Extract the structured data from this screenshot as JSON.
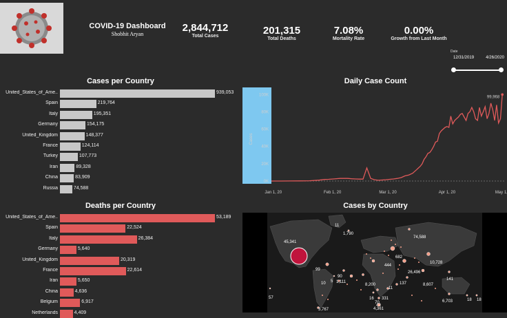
{
  "header": {
    "title": "COVID-19 Dashboard",
    "author": "Shobhit Aryan"
  },
  "kpis": [
    {
      "value": "2,844,712",
      "label": "Total Cases"
    },
    {
      "value": "201,315",
      "label": "Total Deaths"
    },
    {
      "value": "7.08%",
      "label": "Mortality Rate"
    },
    {
      "value": "0.00%",
      "label": "Growth from Last Month"
    }
  ],
  "date_filter": {
    "label": "Date",
    "start": "12/31/2019",
    "end": "4/26/2020"
  },
  "cases_chart": {
    "title": "Cases per Country",
    "color": "#c8c8c8",
    "max": 939053,
    "rows": [
      {
        "country": "United_States_of_Ame..",
        "value": 939053,
        "label": "939,053"
      },
      {
        "country": "Spain",
        "value": 219764,
        "label": "219,764"
      },
      {
        "country": "Italy",
        "value": 195351,
        "label": "195,351"
      },
      {
        "country": "Germany",
        "value": 154175,
        "label": "154,175"
      },
      {
        "country": "United_Kingdom",
        "value": 148377,
        "label": "148,377"
      },
      {
        "country": "France",
        "value": 124114,
        "label": "124,114"
      },
      {
        "country": "Turkey",
        "value": 107773,
        "label": "107,773"
      },
      {
        "country": "Iran",
        "value": 89328,
        "label": "89,328"
      },
      {
        "country": "China",
        "value": 83909,
        "label": "83,909"
      },
      {
        "country": "Russia",
        "value": 74588,
        "label": "74,588"
      }
    ]
  },
  "deaths_chart": {
    "title": "Deaths per Country",
    "color": "#e05a5a",
    "max": 53189,
    "rows": [
      {
        "country": "United_States_of_Ame..",
        "value": 53189,
        "label": "53,189"
      },
      {
        "country": "Spain",
        "value": 22524,
        "label": "22,524"
      },
      {
        "country": "Italy",
        "value": 26384,
        "label": "26,384"
      },
      {
        "country": "Germany",
        "value": 5640,
        "label": "5,640"
      },
      {
        "country": "United_Kingdom",
        "value": 20319,
        "label": "20,319"
      },
      {
        "country": "France",
        "value": 22614,
        "label": "22,614"
      },
      {
        "country": "Iran",
        "value": 5650,
        "label": "5,650"
      },
      {
        "country": "China",
        "value": 4636,
        "label": "4,636"
      },
      {
        "country": "Belgium",
        "value": 6917,
        "label": "6,917"
      },
      {
        "country": "Netherlands",
        "value": 4409,
        "label": "4,409"
      }
    ]
  },
  "chart_data": {
    "type": "line",
    "title": "Daily Case Count",
    "ylabel": "Cases",
    "xlabel": "",
    "ylim": [
      0,
      105000
    ],
    "y_ticks": [
      0,
      20000,
      40000,
      60000,
      80000,
      100000
    ],
    "y_tick_labels": [
      "0K",
      "20K",
      "40K",
      "60K",
      "80K",
      "100K"
    ],
    "x_tick_labels": [
      "Jan 1, 20",
      "Feb 1, 20",
      "Mar 1, 20",
      "Apr 1, 20",
      "May 1, 20"
    ],
    "x_tick_days": [
      1,
      32,
      61,
      92,
      122
    ],
    "last_label": "99,968",
    "line_color": "#e05a5a",
    "series": [
      {
        "name": "Daily cases",
        "x_days": [
          0,
          5,
          10,
          15,
          20,
          25,
          28,
          30,
          33,
          36,
          38,
          40,
          42,
          44,
          46,
          48,
          50,
          52,
          54,
          56,
          58,
          60,
          62,
          64,
          66,
          68,
          70,
          72,
          74,
          75,
          76,
          77,
          78,
          79,
          80,
          81,
          82,
          83,
          84,
          85,
          86,
          87,
          88,
          89,
          90,
          91,
          92,
          93,
          94,
          95,
          96,
          97,
          98,
          99,
          100,
          101,
          102,
          103,
          104,
          105,
          106,
          107,
          108,
          109,
          110,
          111,
          112,
          113,
          114,
          115,
          116,
          117,
          118,
          119,
          120,
          121
        ],
        "values": [
          0,
          0,
          100,
          150,
          300,
          1000,
          1800,
          2000,
          2500,
          3000,
          3100,
          3000,
          2600,
          2400,
          2200,
          2200,
          15200,
          3000,
          1500,
          900,
          1200,
          1500,
          2000,
          2400,
          3000,
          4000,
          6000,
          7000,
          9000,
          11000,
          13000,
          15000,
          17000,
          20000,
          25000,
          28000,
          32000,
          33000,
          36000,
          40000,
          45000,
          46000,
          55000,
          58000,
          60000,
          62000,
          63000,
          62000,
          75000,
          66000,
          70000,
          72000,
          74000,
          77000,
          78000,
          74000,
          70000,
          78000,
          80000,
          85000,
          80000,
          72000,
          70000,
          85000,
          75000,
          80000,
          86000,
          72000,
          78000,
          90000,
          82000,
          70000,
          88000,
          67000,
          72000,
          99968
        ]
      }
    ]
  },
  "map": {
    "title": "Cases by Country",
    "labels": [
      {
        "text": "45,341",
        "kind": "big"
      },
      {
        "text": "11",
        "kind": "small"
      },
      {
        "text": "1,790",
        "kind": "small"
      },
      {
        "text": "74,588",
        "kind": "small"
      },
      {
        "text": "99",
        "kind": "small"
      },
      {
        "text": "682",
        "kind": "small"
      },
      {
        "text": "10,728",
        "kind": "small"
      },
      {
        "text": "444",
        "kind": "small"
      },
      {
        "text": "26,496",
        "kind": "small"
      },
      {
        "text": "8,607",
        "kind": "small"
      },
      {
        "text": "141",
        "kind": "small"
      },
      {
        "text": "90",
        "kind": "small"
      },
      {
        "text": "5",
        "kind": "small"
      },
      {
        "text": "10",
        "kind": "small"
      },
      {
        "text": "1,111",
        "kind": "small"
      },
      {
        "text": "8,200",
        "kind": "small"
      },
      {
        "text": "11",
        "kind": "small"
      },
      {
        "text": "137",
        "kind": "small"
      },
      {
        "text": "16",
        "kind": "small"
      },
      {
        "text": "70",
        "kind": "small"
      },
      {
        "text": "331",
        "kind": "small"
      },
      {
        "text": "40",
        "kind": "small"
      },
      {
        "text": "4,361",
        "kind": "small"
      },
      {
        "text": "57",
        "kind": "small"
      },
      {
        "text": "3,767",
        "kind": "small"
      },
      {
        "text": "6,703",
        "kind": "small"
      },
      {
        "text": "18",
        "kind": "small"
      },
      {
        "text": "18",
        "kind": "small"
      }
    ]
  }
}
